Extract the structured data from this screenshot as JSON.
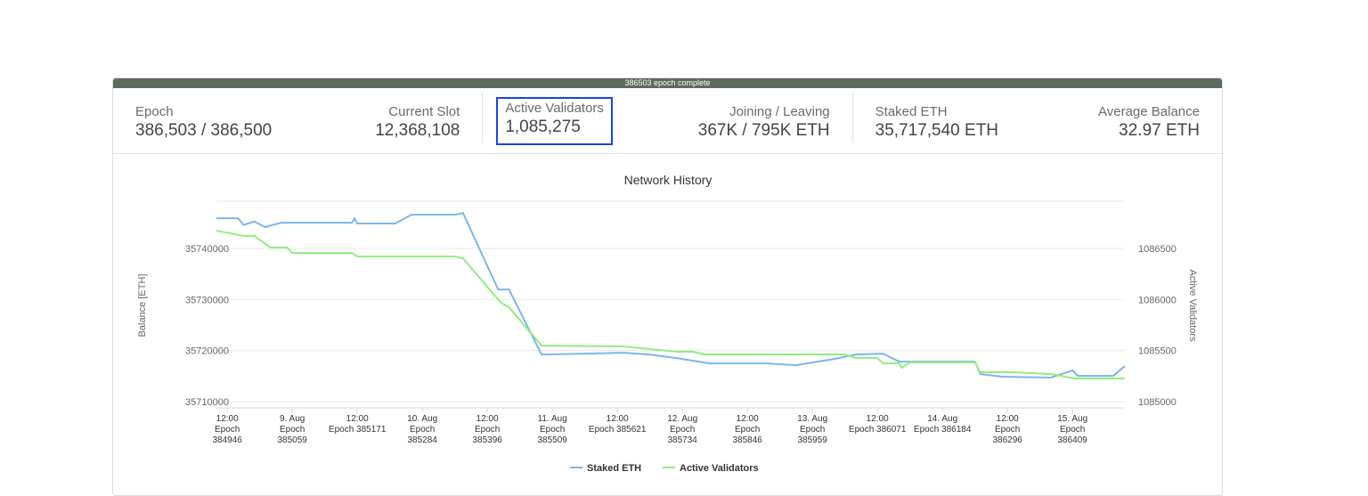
{
  "progress_bar": {
    "label": "386503 epoch complete"
  },
  "stats": [
    {
      "label": "Epoch",
      "value": "386,503 / 386,500"
    },
    {
      "label": "Current Slot",
      "value": "12,368,108"
    },
    {
      "label": "Active Validators",
      "value": "1,085,275"
    },
    {
      "label": "Joining / Leaving",
      "value": "367K / 795K ETH"
    },
    {
      "label": "Staked ETH",
      "value": "35,717,540 ETH"
    },
    {
      "label": "Average Balance",
      "value": "32.97 ETH"
    }
  ],
  "colors": {
    "staked": "#7cb5ec",
    "validators": "#90ed7d",
    "highlight": "#1447e6",
    "bar": "#5d6b5e"
  },
  "chart_data": {
    "type": "line",
    "title": "Network History",
    "ylabel": "Balance [ETH]",
    "y2label": "Active Validators",
    "ylim": [
      35710000,
      35749200
    ],
    "y2lim": [
      1085000,
      1086840
    ],
    "yticks": [
      "35710000",
      "35720000",
      "35730000",
      "35740000"
    ],
    "y2ticks": [
      "1085000",
      "1085500",
      "1086000",
      "1086500"
    ],
    "xlim": [
      "08-08 10:00",
      "08-15 09:40"
    ],
    "xticks": [
      {
        "t": "08-08 12:00",
        "label": [
          "12:00",
          "Epoch",
          "384946"
        ]
      },
      {
        "t": "08-09 00:00",
        "label": [
          "9. Aug",
          "Epoch",
          "385059"
        ]
      },
      {
        "t": "08-09 12:00",
        "label": [
          "12:00",
          "Epoch 385171"
        ]
      },
      {
        "t": "08-10 00:00",
        "label": [
          "10. Aug",
          "Epoch",
          "385284"
        ]
      },
      {
        "t": "08-10 12:00",
        "label": [
          "12:00",
          "Epoch",
          "385396"
        ]
      },
      {
        "t": "08-11 00:00",
        "label": [
          "11. Aug",
          "Epoch",
          "385509"
        ]
      },
      {
        "t": "08-11 12:00",
        "label": [
          "12:00",
          "Epoch 385621"
        ]
      },
      {
        "t": "08-12 00:00",
        "label": [
          "12. Aug",
          "Epoch",
          "385734"
        ]
      },
      {
        "t": "08-12 12:00",
        "label": [
          "12:00",
          "Epoch",
          "385846"
        ]
      },
      {
        "t": "08-13 00:00",
        "label": [
          "13. Aug",
          "Epoch",
          "385959"
        ]
      },
      {
        "t": "08-13 12:00",
        "label": [
          "12:00",
          "Epoch 386071"
        ]
      },
      {
        "t": "08-14 00:00",
        "label": [
          "14. Aug",
          "Epoch 386184"
        ]
      },
      {
        "t": "08-14 12:00",
        "label": [
          "12:00",
          "Epoch",
          "386296"
        ]
      },
      {
        "t": "08-15 00:00",
        "label": [
          "15. Aug",
          "Epoch",
          "386409"
        ]
      }
    ],
    "grid": true,
    "legend": "bottom-center",
    "series": [
      {
        "name": "Staked ETH",
        "axis": "left",
        "points": [
          [
            "08-08 10:00",
            35745930
          ],
          [
            "08-08 14:00",
            35745930
          ],
          [
            "08-08 15:00",
            35744600
          ],
          [
            "08-08 17:00",
            35745300
          ],
          [
            "08-08 19:00",
            35744200
          ],
          [
            "08-08 21:00",
            35744800
          ],
          [
            "08-08 22:00",
            35745060
          ],
          [
            "08-09 11:00",
            35745060
          ],
          [
            "08-09 11:30",
            35745930
          ],
          [
            "08-09 12:00",
            35744900
          ],
          [
            "08-09 19:00",
            35744900
          ],
          [
            "08-09 22:00",
            35746630
          ],
          [
            "08-10 06:00",
            35746630
          ],
          [
            "08-10 07:30",
            35746980
          ],
          [
            "08-10 14:00",
            35731970
          ],
          [
            "08-10 16:00",
            35731970
          ],
          [
            "08-10 22:00",
            35719230
          ],
          [
            "08-11 06:30",
            35719400
          ],
          [
            "08-11 13:00",
            35719580
          ],
          [
            "08-11 18:00",
            35719230
          ],
          [
            "08-12 00:00",
            35718360
          ],
          [
            "08-12 05:00",
            35717490
          ],
          [
            "08-12 15:30",
            35717490
          ],
          [
            "08-12 21:00",
            35717140
          ],
          [
            "08-13 04:00",
            35718360
          ],
          [
            "08-13 08:00",
            35719230
          ],
          [
            "08-13 13:00",
            35719400
          ],
          [
            "08-13 16:00",
            35717840
          ],
          [
            "08-14 06:00",
            35717840
          ],
          [
            "08-14 07:00",
            35715400
          ],
          [
            "08-14 11:00",
            35714880
          ],
          [
            "08-14 20:00",
            35714710
          ],
          [
            "08-15 00:00",
            35716100
          ],
          [
            "08-15 01:00",
            35715050
          ],
          [
            "08-15 07:30",
            35715050
          ],
          [
            "08-15 09:40",
            35716970
          ]
        ]
      },
      {
        "name": "Active Validators",
        "axis": "right",
        "points": [
          [
            "08-08 10:00",
            1086674
          ],
          [
            "08-08 15:00",
            1086622
          ],
          [
            "08-08 17:00",
            1086622
          ],
          [
            "08-08 20:00",
            1086509
          ],
          [
            "08-08 23:00",
            1086509
          ],
          [
            "08-09 00:00",
            1086456
          ],
          [
            "08-09 11:00",
            1086456
          ],
          [
            "08-09 12:00",
            1086421
          ],
          [
            "08-10 06:00",
            1086421
          ],
          [
            "08-10 07:30",
            1086404
          ],
          [
            "08-10 14:30",
            1085968
          ],
          [
            "08-10 16:00",
            1085924
          ],
          [
            "08-10 22:00",
            1085549
          ],
          [
            "08-11 13:00",
            1085541
          ],
          [
            "08-11 18:00",
            1085515
          ],
          [
            "08-11 23:00",
            1085488
          ],
          [
            "08-12 02:00",
            1085488
          ],
          [
            "08-12 04:00",
            1085462
          ],
          [
            "08-13 06:00",
            1085462
          ],
          [
            "08-13 08:00",
            1085427
          ],
          [
            "08-13 12:00",
            1085427
          ],
          [
            "08-13 13:00",
            1085375
          ],
          [
            "08-13 16:00",
            1085375
          ],
          [
            "08-13 16:30",
            1085331
          ],
          [
            "08-13 18:00",
            1085384
          ],
          [
            "08-14 06:00",
            1085384
          ],
          [
            "08-14 07:00",
            1085288
          ],
          [
            "08-14 13:00",
            1085288
          ],
          [
            "08-14 20:00",
            1085270
          ],
          [
            "08-15 00:30",
            1085227
          ],
          [
            "08-15 09:40",
            1085227
          ]
        ]
      }
    ]
  }
}
